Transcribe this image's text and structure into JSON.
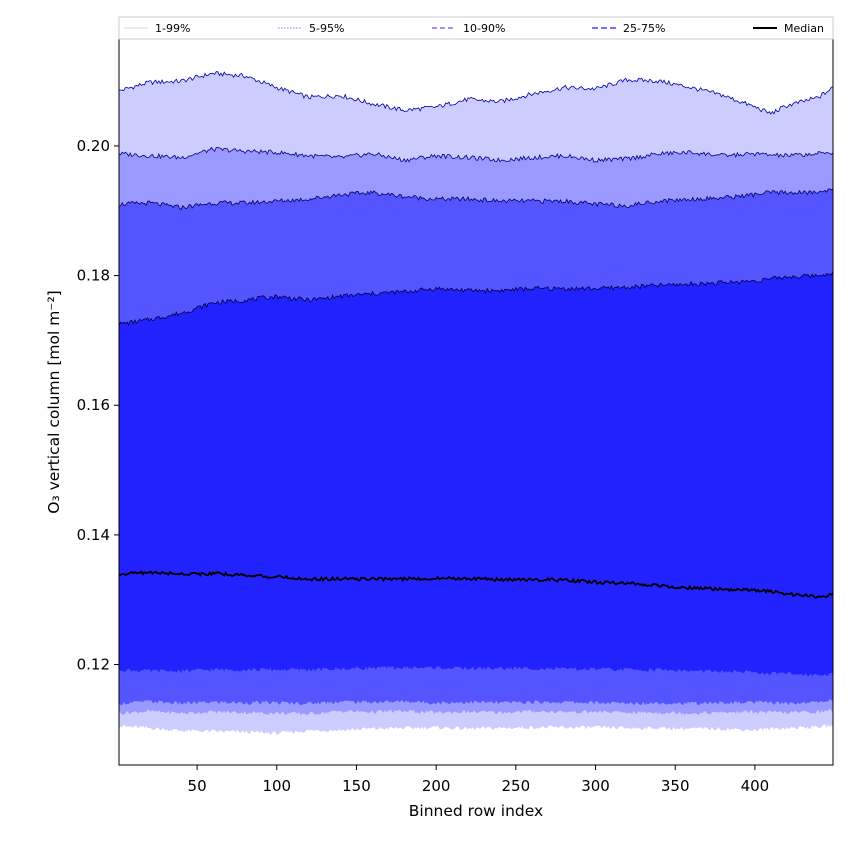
{
  "chart_data": {
    "type": "area",
    "title": "",
    "xlabel": "Binned row index",
    "ylabel": "O₃ vertical column [mol m⁻²]",
    "xlim": [
      1,
      449
    ],
    "ylim": [
      0.1045,
      0.2165
    ],
    "xticks": [
      50,
      100,
      150,
      200,
      250,
      300,
      350,
      400
    ],
    "yticks": [
      0.12,
      0.14,
      0.16,
      0.18,
      0.2
    ],
    "grid": false,
    "legend_position": "top",
    "x": [
      1,
      20,
      40,
      60,
      80,
      100,
      120,
      140,
      160,
      180,
      200,
      220,
      240,
      260,
      280,
      300,
      320,
      340,
      360,
      380,
      400,
      410,
      420,
      440,
      449
    ],
    "bands": [
      {
        "name": "1-99%",
        "color": "#ccccff",
        "line_color": "#0000a0",
        "dash": "",
        "lower": [
          0.1105,
          0.1102,
          0.1098,
          0.1097,
          0.1096,
          0.1094,
          0.1098,
          0.1099,
          0.1101,
          0.1102,
          0.1103,
          0.1101,
          0.1102,
          0.1103,
          0.1103,
          0.1103,
          0.1102,
          0.1102,
          0.1101,
          0.1101,
          0.1099,
          0.1101,
          0.1102,
          0.1104,
          0.1106
        ],
        "upper": [
          0.2085,
          0.2098,
          0.21,
          0.2112,
          0.2108,
          0.209,
          0.2075,
          0.2078,
          0.2065,
          0.2055,
          0.206,
          0.2072,
          0.2068,
          0.208,
          0.209,
          0.2088,
          0.2102,
          0.21,
          0.209,
          0.2078,
          0.206,
          0.205,
          0.2062,
          0.2075,
          0.209
        ]
      },
      {
        "name": "5-95%",
        "color": "#9999ff",
        "line_color": "#000080",
        "dash": "1.5,1.5",
        "lower": [
          0.1125,
          0.1128,
          0.1125,
          0.1127,
          0.1126,
          0.1125,
          0.1124,
          0.1128,
          0.1127,
          0.1128,
          0.1126,
          0.1127,
          0.1126,
          0.1128,
          0.1127,
          0.1127,
          0.1126,
          0.1126,
          0.1125,
          0.1126,
          0.1127,
          0.1126,
          0.1126,
          0.1127,
          0.113
        ],
        "upper": [
          0.1988,
          0.1985,
          0.1982,
          0.1995,
          0.1992,
          0.199,
          0.1985,
          0.1982,
          0.1988,
          0.1978,
          0.1985,
          0.1982,
          0.1978,
          0.1982,
          0.1985,
          0.1978,
          0.198,
          0.1988,
          0.199,
          0.1985,
          0.1988,
          0.1986,
          0.1985,
          0.1988,
          0.199
        ]
      },
      {
        "name": "10-90%",
        "color": "#5555ff",
        "line_color": "#000060",
        "dash": "5,3",
        "lower": [
          0.114,
          0.1143,
          0.114,
          0.1142,
          0.1141,
          0.1141,
          0.114,
          0.1143,
          0.1142,
          0.1143,
          0.1141,
          0.1142,
          0.1141,
          0.1142,
          0.1142,
          0.1141,
          0.114,
          0.1141,
          0.114,
          0.1141,
          0.1142,
          0.1141,
          0.114,
          0.1142,
          0.1146
        ],
        "upper": [
          0.191,
          0.1912,
          0.1905,
          0.1912,
          0.1912,
          0.1915,
          0.1918,
          0.1925,
          0.1928,
          0.1922,
          0.1918,
          0.1918,
          0.1915,
          0.1915,
          0.1915,
          0.191,
          0.1908,
          0.1915,
          0.1918,
          0.192,
          0.1925,
          0.1928,
          0.1928,
          0.1928,
          0.1935
        ]
      },
      {
        "name": "25-75%",
        "color": "#2222ff",
        "line_color": "#000040",
        "dash": "6,3",
        "lower": [
          0.1192,
          0.119,
          0.119,
          0.1192,
          0.1192,
          0.1192,
          0.1192,
          0.1193,
          0.1195,
          0.1195,
          0.1195,
          0.1194,
          0.1194,
          0.1194,
          0.1193,
          0.1193,
          0.1192,
          0.1192,
          0.119,
          0.1189,
          0.1188,
          0.1186,
          0.1186,
          0.1184,
          0.1186
        ],
        "upper": [
          0.1725,
          0.1732,
          0.1742,
          0.1758,
          0.1762,
          0.1768,
          0.1762,
          0.1768,
          0.1772,
          0.1775,
          0.178,
          0.1777,
          0.1777,
          0.178,
          0.178,
          0.178,
          0.1782,
          0.1785,
          0.1787,
          0.1789,
          0.1792,
          0.1795,
          0.1798,
          0.18,
          0.1805
        ]
      }
    ],
    "median": {
      "name": "Median",
      "color": "#000000",
      "values": [
        0.134,
        0.1342,
        0.134,
        0.134,
        0.1338,
        0.1335,
        0.1332,
        0.1332,
        0.1332,
        0.1332,
        0.1333,
        0.1333,
        0.1331,
        0.1331,
        0.133,
        0.1327,
        0.1325,
        0.1322,
        0.1318,
        0.1316,
        0.1314,
        0.1313,
        0.1309,
        0.1304,
        0.1308
      ]
    },
    "legend": [
      "1-99%",
      "5-95%",
      "10-90%",
      "25-75%",
      "Median"
    ]
  }
}
